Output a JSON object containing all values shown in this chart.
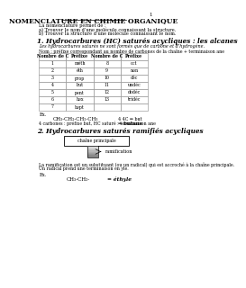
{
  "title": "NOMENCLATURE EN CHIMIE ORGANIQUE",
  "page_number": "1",
  "intro_lines": [
    "La nomenclature permet de :",
    "a) Trouver le nom d’une molécule connaissant la structure.",
    "b) Trouver la structure d’une molécule connaissant le nom."
  ],
  "section1_title": "1. Hydrocarbures (HC) saturés acycliques : les alcanes",
  "section1_line1": "Les hydrocarbures saturés ne sont formés que de carbone et d’hydrogène.",
  "section1_line2": "Nom : préfixe correspondant au nombre de carbones de la chaîne + terminaison ane",
  "table_headers": [
    "Nombre de C",
    "Préfixe",
    "Nombre de C",
    "Préfixe"
  ],
  "table_data": [
    [
      "1",
      "méth",
      "8",
      "oct"
    ],
    [
      "2",
      "éth",
      "9",
      "non"
    ],
    [
      "3",
      "prop",
      "10",
      "déc"
    ],
    [
      "4",
      "but",
      "11",
      "undéc"
    ],
    [
      "5",
      "pent",
      "12",
      "dodéc"
    ],
    [
      "6",
      "hex",
      "13",
      "tridéc"
    ],
    [
      "7",
      "hept",
      "",
      ""
    ]
  ],
  "ex_label": "Ex.",
  "ex_formula": "CH₃-CH₂-CH₂-CH₃",
  "ex_right1": "4 4C ⇒ but",
  "ex_right2": "⇒ butane",
  "ex_left": "4 carbones : préfixe but, HC saturé : terminaison ane",
  "section2_title": "2. Hydrocarbures saturés ramifiés acycliques",
  "box_label": "chaîne principale",
  "arrow_label": "ramification",
  "section2_desc1": "La ramification est un substituant (ou un radical) qui est accroché à la chaîne principale.",
  "section2_desc2": "Un radical prend une terminaison en yle.",
  "ex2_label": "Ex.",
  "ex2_formula": "CH₃-CH₂-",
  "ex2_result": "éthyle",
  "bg_color": "#ffffff",
  "text_color": "#000000",
  "table_border_color": "#888888"
}
